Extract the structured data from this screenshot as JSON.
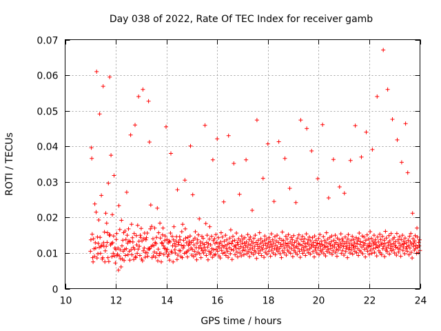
{
  "chart_data": {
    "type": "scatter",
    "title": "Day 038 of 2022, Rate Of TEC Index for receiver gamb",
    "xlabel": "GPS time / hours",
    "ylabel": "ROTI / TECUs",
    "xlim": [
      10,
      24
    ],
    "ylim": [
      0,
      0.07
    ],
    "xticks": [
      10,
      12,
      14,
      16,
      18,
      20,
      22,
      24
    ],
    "xtick_labels": [
      "10",
      "12",
      "14",
      "16",
      "18",
      "20",
      "22",
      "24"
    ],
    "yticks": [
      0,
      0.01,
      0.02,
      0.03,
      0.04,
      0.05,
      0.06,
      0.07
    ],
    "ytick_labels": [
      "0",
      "0.01",
      "0.02",
      "0.03",
      "0.04",
      "0.05",
      "0.06",
      "0.07"
    ],
    "grid": true,
    "marker": "+",
    "color": "#ff0000",
    "series": [
      {
        "x_start": 11.0,
        "x_end": 24.0,
        "values": [
          0.0105,
          0.0137,
          0.0396,
          0.0366,
          0.0153,
          0.0087,
          0.0075,
          0.014,
          0.0112,
          0.0091,
          0.0238,
          0.0129,
          0.0114,
          0.0215,
          0.061,
          0.0086,
          0.0145,
          0.0098,
          0.0127,
          0.0193,
          0.0116,
          0.0491,
          0.0144,
          0.0099,
          0.0118,
          0.0262,
          0.0122,
          0.0083,
          0.0087,
          0.0569,
          0.0129,
          0.0119,
          0.0159,
          0.0075,
          0.0106,
          0.0212,
          0.0119,
          0.0184,
          0.013,
          0.0157,
          0.0087,
          0.0296,
          0.0076,
          0.015,
          0.0595,
          0.0151,
          0.0123,
          0.0375,
          0.0127,
          0.009,
          0.0208,
          0.0129,
          0.0099,
          0.0148,
          0.0318,
          0.0092,
          0.0114,
          0.0072,
          0.011,
          0.0138,
          0.0155,
          0.0093,
          0.0097,
          0.0114,
          0.0052,
          0.0233,
          0.0092,
          0.0166,
          0.0109,
          0.0084,
          0.0061,
          0.0192,
          0.012,
          0.0083,
          0.0136,
          0.0105,
          0.0157,
          0.0079,
          0.011,
          0.0162,
          0.0093,
          0.0138,
          0.0112,
          0.0271,
          0.015,
          0.0128,
          0.0095,
          0.0168,
          0.0134,
          0.0105,
          0.008,
          0.0132,
          0.0432,
          0.0109,
          0.0181,
          0.0095,
          0.0143,
          0.0131,
          0.0116,
          0.0082,
          0.0155,
          0.0111,
          0.046,
          0.009,
          0.0087,
          0.0149,
          0.0123,
          0.0099,
          0.0178,
          0.0111,
          0.054,
          0.0133,
          0.0119,
          0.0093,
          0.015,
          0.0144,
          0.0169,
          0.0083,
          0.0134,
          0.0078,
          0.056,
          0.0106,
          0.014,
          0.0114,
          0.0156,
          0.0088,
          0.0101,
          0.0137,
          0.0143,
          0.0101,
          0.0156,
          0.0091,
          0.0112,
          0.0527,
          0.0111,
          0.0412,
          0.0113,
          0.0168,
          0.0235,
          0.0118,
          0.0175,
          0.0087,
          0.0122,
          0.014,
          0.0092,
          0.0121,
          0.0103,
          0.017,
          0.013,
          0.0088,
          0.0126,
          0.0144,
          0.0099,
          0.0226,
          0.0078,
          0.0111,
          0.0157,
          0.0093,
          0.0099,
          0.0184,
          0.0142,
          0.0099,
          0.0075,
          0.0129,
          0.0127,
          0.0151,
          0.017,
          0.012,
          0.0096,
          0.0113,
          0.0135,
          0.0148,
          0.0112,
          0.0455,
          0.0103,
          0.0138,
          0.011,
          0.0091,
          0.0129,
          0.0096,
          0.0134,
          0.008,
          0.0131,
          0.0156,
          0.038,
          0.0105,
          0.0101,
          0.0147,
          0.012,
          0.0075,
          0.0137,
          0.0174,
          0.0126,
          0.0109,
          0.01,
          0.0119,
          0.0133,
          0.0146,
          0.0082,
          0.0278,
          0.0094,
          0.0124,
          0.013,
          0.0107,
          0.0146,
          0.0137,
          0.0106,
          0.009,
          0.0122,
          0.016,
          0.0087,
          0.0181,
          0.0114,
          0.0136,
          0.012,
          0.0099,
          0.0305,
          0.0168,
          0.0142,
          0.0101,
          0.0129,
          0.0105,
          0.0089,
          0.0144,
          0.0122,
          0.0108,
          0.0133,
          0.0125,
          0.0148,
          0.0401,
          0.0114,
          0.013,
          0.0094,
          0.011,
          0.0264,
          0.0136,
          0.009,
          0.0123,
          0.0105,
          0.0142,
          0.016,
          0.0095,
          0.0115,
          0.0081,
          0.0128,
          0.0137,
          0.0102,
          0.0151,
          0.0115,
          0.0196,
          0.0098,
          0.0121,
          0.0131,
          0.0087,
          0.0112,
          0.0147,
          0.0106,
          0.0127,
          0.0141,
          0.01,
          0.0116,
          0.0124,
          0.0459,
          0.0108,
          0.0183,
          0.0093,
          0.013,
          0.015,
          0.0117,
          0.0081,
          0.0126,
          0.0105,
          0.0139,
          0.0174,
          0.0097,
          0.0123,
          0.0102,
          0.0147,
          0.0112,
          0.0088,
          0.0362,
          0.0135,
          0.0109,
          0.0094,
          0.014,
          0.0127,
          0.0096,
          0.0152,
          0.0111,
          0.013,
          0.0421,
          0.0105,
          0.0118,
          0.0143,
          0.0092,
          0.0126,
          0.0114,
          0.0086,
          0.0131,
          0.0157,
          0.0107,
          0.0122,
          0.0145,
          0.0099,
          0.0117,
          0.0244,
          0.0133,
          0.0101,
          0.012,
          0.015,
          0.0093,
          0.0112,
          0.0137,
          0.0124,
          0.0105,
          0.0088,
          0.043,
          0.0128,
          0.0115,
          0.0142,
          0.0098,
          0.0165,
          0.011,
          0.0126,
          0.0082,
          0.0133,
          0.0147,
          0.0108,
          0.0352,
          0.0119,
          0.0136,
          0.0095,
          0.0121,
          0.0114,
          0.0156,
          0.0103,
          0.013,
          0.0089,
          0.0124,
          0.014,
          0.0112,
          0.0265,
          0.01,
          0.0134,
          0.0118,
          0.0092,
          0.0148,
          0.0127,
          0.0106,
          0.0139,
          0.0115,
          0.0095,
          0.0128,
          0.0143,
          0.0108,
          0.0121,
          0.0362,
          0.0131,
          0.0098,
          0.0117,
          0.0152,
          0.0104,
          0.0125,
          0.0138,
          0.009,
          0.0111,
          0.0145,
          0.0122,
          0.0101,
          0.0133,
          0.022,
          0.0114,
          0.0128,
          0.0096,
          0.0141,
          0.0107,
          0.0119,
          0.015,
          0.0103,
          0.013,
          0.0085,
          0.0474,
          0.0124,
          0.0112,
          0.0136,
          0.0099,
          0.0118,
          0.0157,
          0.0106,
          0.0127,
          0.014,
          0.0093,
          0.0115,
          0.0131,
          0.011,
          0.031,
          0.0122,
          0.0088,
          0.0135,
          0.0148,
          0.0102,
          0.0126,
          0.0113,
          0.0139,
          0.0097,
          0.012,
          0.0407,
          0.0129,
          0.0105,
          0.0143,
          0.0116,
          0.0132,
          0.0091,
          0.0124,
          0.0154,
          0.0108,
          0.0119,
          0.0137,
          0.01,
          0.0128,
          0.0245,
          0.0113,
          0.0146,
          0.0095,
          0.0122,
          0.0134,
          0.0109,
          0.015,
          0.0117,
          0.0104,
          0.013,
          0.0413,
          0.0112,
          0.0141,
          0.0098,
          0.0125,
          0.0118,
          0.0087,
          0.0136,
          0.0159,
          0.0106,
          0.0123,
          0.0135,
          0.0101,
          0.0114,
          0.0366,
          0.0128,
          0.0147,
          0.0094,
          0.012,
          0.0139,
          0.0108,
          0.0126,
          0.0152,
          0.0103,
          0.0117,
          0.0282,
          0.0131,
          0.0099,
          0.0144,
          0.0112,
          0.0125,
          0.0137,
          0.009,
          0.0121,
          0.0149,
          0.0107,
          0.013,
          0.0116,
          0.0102,
          0.0242,
          0.0134,
          0.0119,
          0.0096,
          0.0142,
          0.0113,
          0.0127,
          0.0151,
          0.0105,
          0.0124,
          0.0088,
          0.0474,
          0.0138,
          0.011,
          0.0121,
          0.0147,
          0.0099,
          0.0132,
          0.0115,
          0.0106,
          0.014,
          0.0126,
          0.0093,
          0.0118,
          0.0154,
          0.045,
          0.0109,
          0.0129,
          0.0137,
          0.0101,
          0.0123,
          0.0145,
          0.0112,
          0.0097,
          0.0134,
          0.0117,
          0.0387,
          0.0125,
          0.0143,
          0.0104,
          0.012,
          0.013,
          0.0089,
          0.0148,
          0.0115,
          0.0108,
          0.0136,
          0.0122,
          0.01,
          0.0128,
          0.0309,
          0.0114,
          0.0141,
          0.0095,
          0.0126,
          0.0152,
          0.0107,
          0.0119,
          0.0133,
          0.0103,
          0.0124,
          0.0461,
          0.0111,
          0.0146,
          0.0098,
          0.0121,
          0.0135,
          0.0116,
          0.0092,
          0.0129,
          0.0157,
          0.0105,
          0.0118,
          0.0139,
          0.011,
          0.0255,
          0.0127,
          0.0101,
          0.0144,
          0.0123,
          0.0113,
          0.0132,
          0.0148,
          0.0096,
          0.012,
          0.0106,
          0.0363,
          0.0136,
          0.0117,
          0.0125,
          0.015,
          0.0102,
          0.013,
          0.0111,
          0.0091,
          0.0142,
          0.0124,
          0.0108,
          0.0119,
          0.0137,
          0.0286,
          0.0115,
          0.0128,
          0.0154,
          0.0099,
          0.0122,
          0.014,
          0.0107,
          0.0133,
          0.0118,
          0.0094,
          0.0268,
          0.0126,
          0.0145,
          0.0104,
          0.0113,
          0.0131,
          0.012,
          0.0087,
          0.0139,
          0.0152,
          0.011,
          0.0127,
          0.0116,
          0.01,
          0.036,
          0.0135,
          0.0109,
          0.0123,
          0.0147,
          0.0097,
          0.0121,
          0.0138,
          0.0114,
          0.0129,
          0.0105,
          0.0458,
          0.0118,
          0.0143,
          0.0101,
          0.0126,
          0.0134,
          0.0112,
          0.0093,
          0.014,
          0.0156,
          0.0107,
          0.0124,
          0.0132,
          0.0103,
          0.037,
          0.0117,
          0.0148,
          0.0098,
          0.013,
          0.0121,
          0.0145,
          0.011,
          0.0126,
          0.0089,
          0.0136,
          0.044,
          0.0114,
          0.0151,
          0.0105,
          0.0122,
          0.0139,
          0.0118,
          0.0096,
          0.0128,
          0.016,
          0.0108,
          0.012,
          0.0141,
          0.0099,
          0.0391,
          0.0133,
          0.0112,
          0.0125,
          0.015,
          0.0102,
          0.0129,
          0.0137,
          0.0115,
          0.0123,
          0.0092,
          0.054,
          0.0145,
          0.0117,
          0.0131,
          0.0106,
          0.012,
          0.0153,
          0.0101,
          0.0138,
          0.0124,
          0.0095,
          0.0128,
          0.0147,
          0.0112,
          0.0671,
          0.0119,
          0.0136,
          0.009,
          0.0126,
          0.0161,
          0.0108,
          0.0142,
          0.0115,
          0.0104,
          0.056,
          0.013,
          0.0121,
          0.0149,
          0.0097,
          0.0134,
          0.0113,
          0.0125,
          0.0155,
          0.0106,
          0.0118,
          0.0476,
          0.0139,
          0.0109,
          0.0127,
          0.0144,
          0.01,
          0.0122,
          0.0132,
          0.0116,
          0.0094,
          0.0155,
          0.0418,
          0.0114,
          0.0137,
          0.0103,
          0.0128,
          0.0146,
          0.0111,
          0.012,
          0.0091,
          0.0138,
          0.0355,
          0.0124,
          0.015,
          0.0107,
          0.0117,
          0.0133,
          0.0126,
          0.0098,
          0.0142,
          0.0464,
          0.0112,
          0.0129,
          0.0118,
          0.0105,
          0.0326,
          0.0136,
          0.0121,
          0.0095,
          0.0147,
          0.0114,
          0.0131,
          0.0155,
          0.0102,
          0.0125,
          0.0086,
          0.0212,
          0.014,
          0.0119,
          0.0128,
          0.0108,
          0.0134,
          0.0149,
          0.0113,
          0.0122,
          0.0099,
          0.017,
          0.0145,
          0.0116,
          0.0101,
          0.013,
          0.012,
          0.0137,
          0.0107
        ]
      }
    ]
  }
}
